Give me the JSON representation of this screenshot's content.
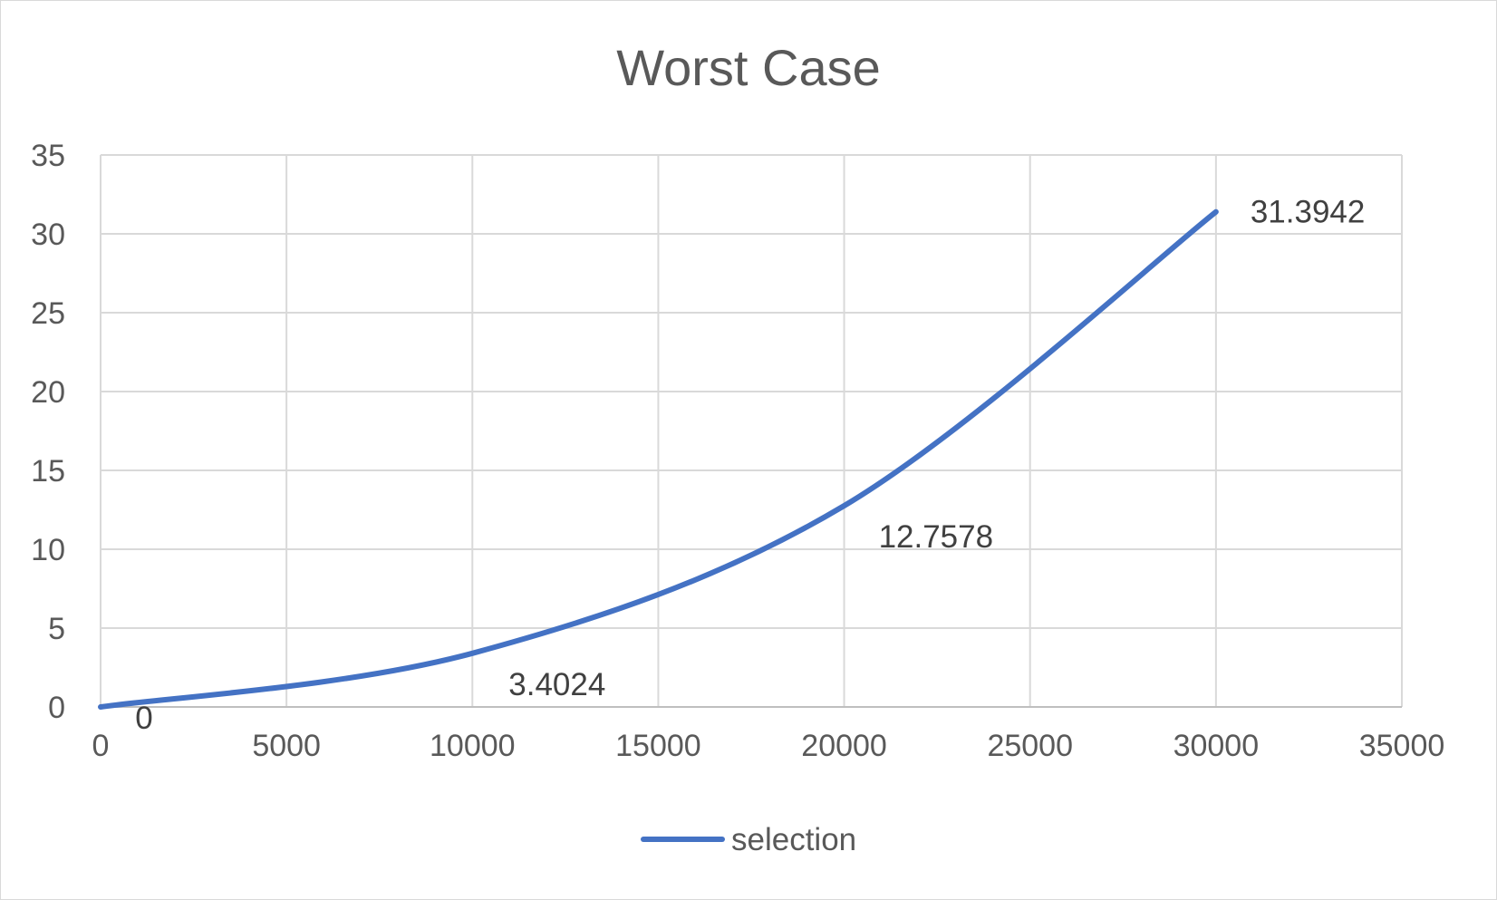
{
  "chart_data": {
    "type": "scatter",
    "title": "Worst Case",
    "xlabel": "",
    "ylabel": "",
    "xlim": [
      0,
      35000
    ],
    "ylim": [
      0,
      35
    ],
    "x_ticks": [
      "0",
      "5000",
      "10000",
      "15000",
      "20000",
      "25000",
      "30000",
      "35000"
    ],
    "y_ticks": [
      "0",
      "5",
      "10",
      "15",
      "20",
      "25",
      "30",
      "35"
    ],
    "grid": true,
    "legend_position": "bottom",
    "series": [
      {
        "name": "selection",
        "color": "#4472c4",
        "smooth": true,
        "x": [
          0,
          10000,
          20000,
          30000
        ],
        "y": [
          0,
          3.4024,
          12.7578,
          31.3942
        ],
        "labels": [
          "0",
          "3.4024",
          "12.7578",
          "31.3942"
        ]
      }
    ]
  }
}
